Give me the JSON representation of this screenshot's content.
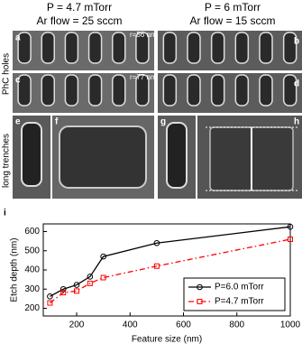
{
  "header": {
    "left": [
      "P = 4.7 mTorr",
      "Ar flow = 25 sccm"
    ],
    "right": [
      "P = 6 mTorr",
      "Ar flow = 15 sccm"
    ]
  },
  "panels": {
    "labels": [
      "a",
      "b",
      "c",
      "d",
      "e",
      "f",
      "g",
      "h",
      "i"
    ],
    "row_labels": [
      "PhC holes",
      "long trenches"
    ],
    "radius_labels": [
      "r=56 nm",
      "r=77 nm"
    ]
  },
  "chart_data": {
    "type": "line",
    "x_label": "Feature size (nm)",
    "y_label": "Etch depth (nm)",
    "xlim": [
      75,
      1000
    ],
    "xticks": [
      200,
      400,
      600,
      800,
      1000
    ],
    "ylim": [
      160,
      640
    ],
    "yticks": [
      200,
      300,
      400,
      500,
      600
    ],
    "legend": "lower right",
    "series": [
      {
        "name": "P=6.0 mTorr",
        "color": "#000000",
        "marker": "circle",
        "dash": "solid",
        "x": [
          100,
          150,
          200,
          250,
          300,
          500,
          1000
        ],
        "values": [
          262,
          300,
          322,
          365,
          470,
          540,
          625
        ]
      },
      {
        "name": "P=4.7 mTorr",
        "color": "#ff0000",
        "marker": "square",
        "dash": "dashdot",
        "x": [
          100,
          150,
          200,
          250,
          300,
          500,
          1000
        ],
        "values": [
          228,
          282,
          290,
          330,
          360,
          420,
          560
        ]
      }
    ]
  }
}
